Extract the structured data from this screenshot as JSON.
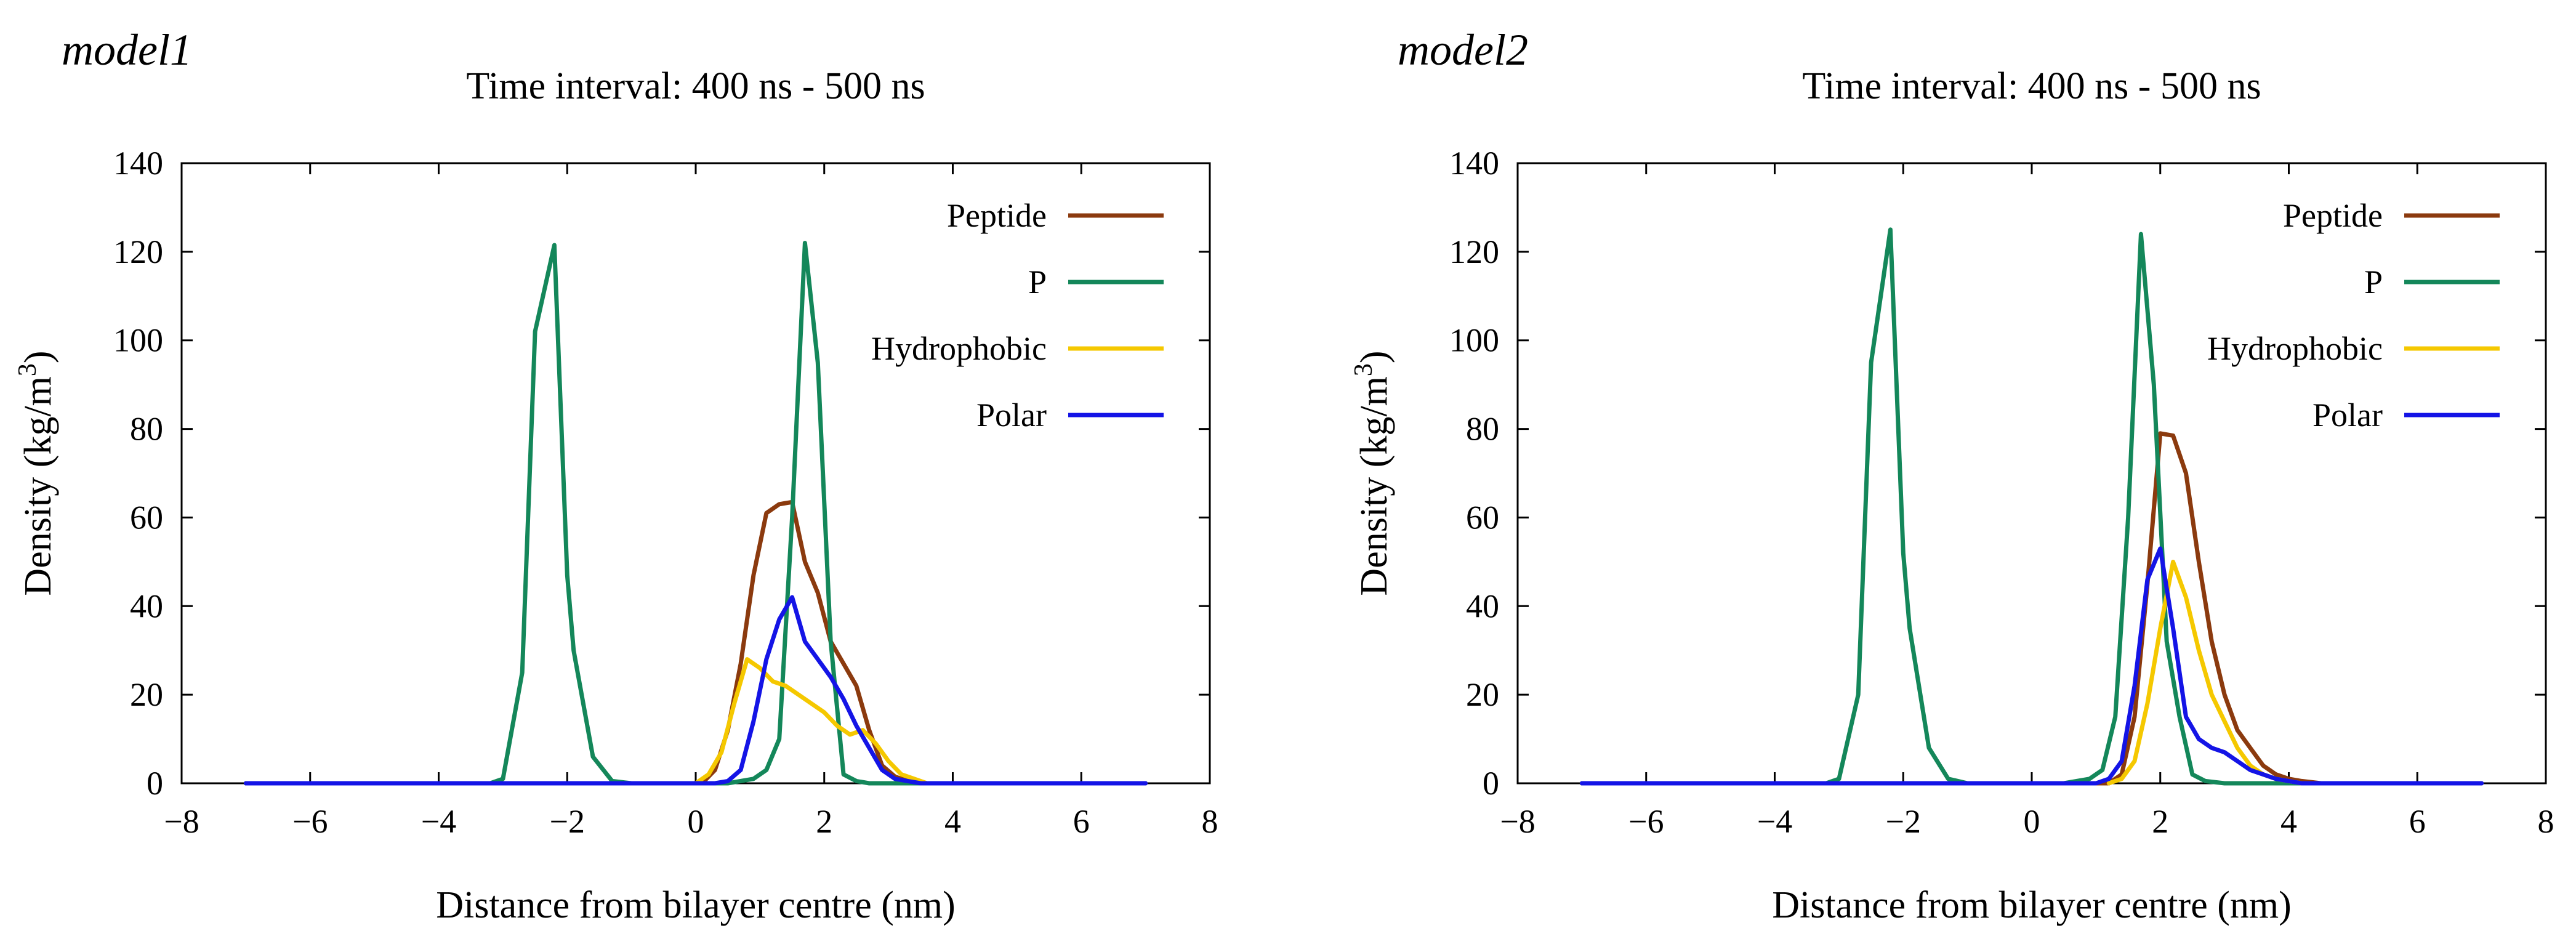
{
  "chart_data": [
    {
      "type": "line",
      "panel_label": "model1",
      "title": "Time interval: 400 ns - 500 ns",
      "xlabel": "Distance from bilayer centre (nm)",
      "ylabel": "Density (kg/m3)",
      "ylabel_parts": {
        "base": "Density (kg/m",
        "sup": "3",
        "end": ")"
      },
      "xlim": [
        -8,
        8
      ],
      "ylim": [
        0,
        140
      ],
      "xticks": [
        -8,
        -6,
        -4,
        -2,
        0,
        2,
        4,
        6,
        8
      ],
      "xtick_labels": [
        "−8",
        "−6",
        "−4",
        "−2",
        "0",
        "2",
        "4",
        "6",
        "8"
      ],
      "yticks": [
        0,
        20,
        40,
        60,
        80,
        100,
        120,
        140
      ],
      "ytick_labels": [
        "0",
        "20",
        "40",
        "60",
        "80",
        "100",
        "120",
        "140"
      ],
      "grid": false,
      "legend_position": "top-right",
      "series": [
        {
          "name": "Peptide",
          "color": "#8B3A0E",
          "x": [
            -7,
            -6.5,
            -6,
            -5.5,
            -5,
            -4.5,
            -4,
            -3.5,
            -3,
            -2.5,
            -2,
            -1.5,
            -1,
            -0.5,
            0,
            0.1,
            0.3,
            0.5,
            0.7,
            0.9,
            1.1,
            1.3,
            1.5,
            1.7,
            1.9,
            2.1,
            2.3,
            2.5,
            2.7,
            2.9,
            3.1,
            3.3,
            3.5,
            3.7,
            4,
            4.5,
            5,
            5.5,
            6,
            6.5,
            7
          ],
          "y": [
            0,
            0,
            0,
            0,
            0,
            0,
            0,
            0,
            0,
            0,
            0,
            0,
            0,
            0,
            0,
            0,
            3,
            12,
            27,
            47,
            61,
            63,
            63.5,
            50,
            43,
            32,
            27,
            22,
            12,
            4,
            1.5,
            0.5,
            0,
            0,
            0,
            0,
            0,
            0,
            0,
            0,
            0
          ]
        },
        {
          "name": "P",
          "color": "#14875A",
          "x": [
            -7,
            -6.5,
            -6,
            -5.5,
            -5,
            -4.5,
            -4,
            -3.5,
            -3.2,
            -3,
            -2.7,
            -2.5,
            -2.2,
            -2,
            -1.9,
            -1.6,
            -1.3,
            -1,
            -0.5,
            0,
            0.5,
            0.9,
            1.1,
            1.3,
            1.5,
            1.7,
            1.9,
            2.1,
            2.3,
            2.5,
            2.7,
            3,
            3.5,
            4,
            4.5,
            5,
            5.5,
            6,
            6.5,
            7
          ],
          "y": [
            0,
            0,
            0,
            0,
            0,
            0,
            0,
            0,
            0,
            1,
            25,
            102,
            121.5,
            47,
            30,
            6,
            0.5,
            0,
            0,
            0,
            0,
            1,
            3,
            10,
            60,
            122,
            95,
            32,
            2,
            0.5,
            0,
            0,
            0,
            0,
            0,
            0,
            0,
            0,
            0,
            0
          ]
        },
        {
          "name": "Hydrophobic",
          "color": "#F5C800",
          "x": [
            0,
            0.2,
            0.4,
            0.6,
            0.8,
            1,
            1.2,
            1.4,
            1.6,
            1.8,
            2,
            2.2,
            2.4,
            2.6,
            2.8,
            3,
            3.2,
            3.4,
            3.6,
            3.8,
            4.2
          ],
          "y": [
            0,
            2,
            7,
            18,
            28,
            26,
            23,
            22,
            20,
            18,
            16,
            13,
            11,
            12,
            9,
            5,
            2,
            1,
            0,
            0,
            0
          ]
        },
        {
          "name": "Polar",
          "color": "#1414E6",
          "x": [
            -7,
            -6.5,
            -6,
            -5.5,
            -5,
            -4.5,
            -4,
            -3.5,
            -3,
            -2.5,
            -2,
            -1.5,
            -1,
            -0.5,
            0,
            0.3,
            0.5,
            0.7,
            0.9,
            1.1,
            1.3,
            1.5,
            1.7,
            1.9,
            2.1,
            2.3,
            2.5,
            2.7,
            2.9,
            3.1,
            3.3,
            3.5,
            4,
            4.5,
            5,
            5.5,
            6,
            6.5,
            7
          ],
          "y": [
            0,
            0,
            0,
            0,
            0,
            0,
            0,
            0,
            0,
            0,
            0,
            0,
            0,
            0,
            0,
            0,
            0.5,
            3,
            14,
            28,
            37,
            42,
            32,
            28,
            24,
            19,
            13,
            8,
            3,
            1,
            0.5,
            0,
            0,
            0,
            0,
            0,
            0,
            0,
            0
          ]
        }
      ]
    },
    {
      "type": "line",
      "panel_label": "model2",
      "title": "Time interval: 400 ns - 500 ns",
      "xlabel": "Distance from bilayer centre (nm)",
      "ylabel": "Density (kg/m3)",
      "ylabel_parts": {
        "base": "Density (kg/m",
        "sup": "3",
        "end": ")"
      },
      "xlim": [
        -8,
        8
      ],
      "ylim": [
        0,
        140
      ],
      "xticks": [
        -8,
        -6,
        -4,
        -2,
        0,
        2,
        4,
        6,
        8
      ],
      "xtick_labels": [
        "−8",
        "−6",
        "−4",
        "−2",
        "0",
        "2",
        "4",
        "6",
        "8"
      ],
      "yticks": [
        0,
        20,
        40,
        60,
        80,
        100,
        120,
        140
      ],
      "ytick_labels": [
        "0",
        "20",
        "40",
        "60",
        "80",
        "100",
        "120",
        "140"
      ],
      "grid": false,
      "legend_position": "top-right",
      "series": [
        {
          "name": "Peptide",
          "color": "#8B3A0E",
          "x": [
            -7,
            -6.5,
            -6,
            -5.5,
            -5,
            -4.5,
            -4,
            -3.5,
            -3,
            -2.5,
            -2,
            -1.5,
            -1,
            -0.5,
            0,
            0.5,
            1,
            1.2,
            1.4,
            1.6,
            1.8,
            2,
            2.2,
            2.4,
            2.6,
            2.8,
            3,
            3.2,
            3.4,
            3.6,
            3.8,
            4,
            4.2,
            4.5,
            5,
            5.5,
            6,
            6.5,
            7
          ],
          "y": [
            0,
            0,
            0,
            0,
            0,
            0,
            0,
            0,
            0,
            0,
            0,
            0,
            0,
            0,
            0,
            0,
            0,
            0,
            2,
            15,
            45,
            79,
            78.5,
            70,
            50,
            32,
            20,
            12,
            8,
            4,
            2,
            1,
            0.5,
            0,
            0,
            0,
            0,
            0,
            0
          ]
        },
        {
          "name": "P",
          "color": "#14875A",
          "x": [
            -7,
            -6.5,
            -6,
            -5.5,
            -5,
            -4.5,
            -4,
            -3.5,
            -3.2,
            -3,
            -2.7,
            -2.5,
            -2.2,
            -2,
            -1.9,
            -1.6,
            -1.3,
            -1,
            -0.5,
            0,
            0.5,
            0.9,
            1.1,
            1.3,
            1.5,
            1.7,
            1.9,
            2.1,
            2.3,
            2.5,
            2.7,
            3,
            3.5,
            4,
            4.5,
            5,
            5.5,
            6,
            6.5,
            7
          ],
          "y": [
            0,
            0,
            0,
            0,
            0,
            0,
            0,
            0,
            0,
            1,
            20,
            95,
            125,
            52,
            35,
            8,
            1,
            0,
            0,
            0,
            0,
            1,
            3,
            15,
            60,
            124,
            90,
            32,
            15,
            2,
            0.5,
            0,
            0,
            0,
            0,
            0,
            0,
            0,
            0,
            0
          ]
        },
        {
          "name": "Hydrophobic",
          "color": "#F5C800",
          "x": [
            1.2,
            1.4,
            1.6,
            1.8,
            2,
            2.2,
            2.4,
            2.6,
            2.8,
            3,
            3.2,
            3.4,
            3.6,
            3.8,
            4,
            4.2,
            4.5
          ],
          "y": [
            0,
            1,
            5,
            18,
            35,
            50,
            42,
            30,
            20,
            14,
            8,
            4,
            2,
            1,
            0.5,
            0,
            0
          ]
        },
        {
          "name": "Polar",
          "color": "#1414E6",
          "x": [
            -7,
            -6.5,
            -6,
            -5.5,
            -5,
            -4.5,
            -4,
            -3.5,
            -3,
            -2.5,
            -2,
            -1.5,
            -1,
            -0.5,
            0,
            0.5,
            1,
            1.2,
            1.4,
            1.6,
            1.8,
            2,
            2.2,
            2.4,
            2.6,
            2.8,
            3,
            3.2,
            3.4,
            3.6,
            3.8,
            4,
            4.2,
            4.5,
            5,
            5.5,
            6,
            6.5,
            7
          ],
          "y": [
            0,
            0,
            0,
            0,
            0,
            0,
            0,
            0,
            0,
            0,
            0,
            0,
            0,
            0,
            0,
            0,
            0,
            1,
            5,
            22,
            46,
            53,
            35,
            15,
            10,
            8,
            7,
            5,
            3,
            2,
            1,
            0.5,
            0,
            0,
            0,
            0,
            0,
            0,
            0
          ]
        }
      ]
    }
  ]
}
